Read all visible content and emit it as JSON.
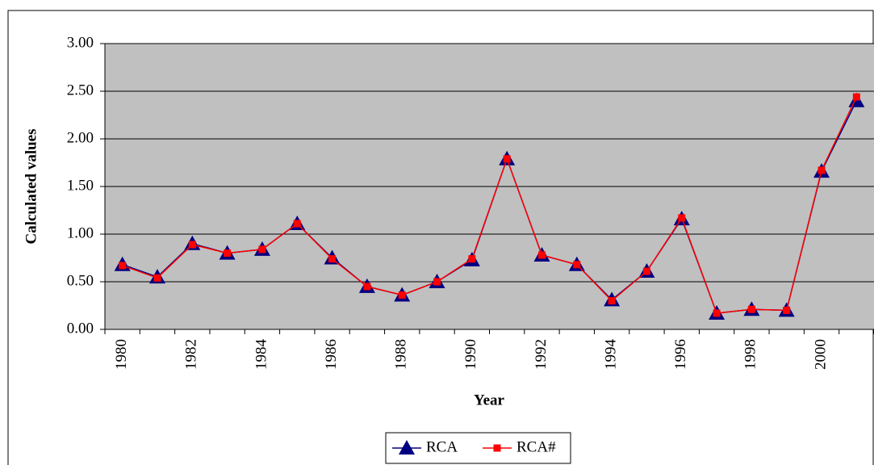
{
  "chart_data": {
    "type": "line",
    "x_label": "Year",
    "y_label": "Calculated values",
    "categories": [
      "1980",
      null,
      "1982",
      null,
      "1984",
      null,
      "1986",
      null,
      "1988",
      null,
      "1990",
      null,
      "1992",
      null,
      "1994",
      null,
      "1996",
      null,
      "1998",
      null,
      "2000",
      null
    ],
    "series": [
      {
        "name": "RCA",
        "color": "#000080",
        "marker": "triangle",
        "values": [
          0.68,
          0.55,
          0.9,
          0.8,
          0.84,
          1.11,
          0.75,
          0.45,
          0.36,
          0.5,
          0.73,
          1.79,
          0.78,
          0.68,
          0.31,
          0.61,
          1.16,
          0.17,
          0.21,
          0.2,
          1.66,
          2.4
        ]
      },
      {
        "name": "RCA#",
        "color": "#ff0000",
        "marker": "square",
        "values": [
          0.67,
          0.54,
          0.89,
          0.8,
          0.84,
          1.11,
          0.74,
          0.45,
          0.36,
          0.5,
          0.74,
          1.79,
          0.78,
          0.68,
          0.3,
          0.61,
          1.17,
          0.17,
          0.21,
          0.2,
          1.67,
          2.44
        ]
      }
    ],
    "ylim": [
      0,
      3
    ],
    "yticks": [
      {
        "value": 0,
        "label": "0.00"
      },
      {
        "value": 0.5,
        "label": "0.50"
      },
      {
        "value": 1,
        "label": "1.00"
      },
      {
        "value": 1.5,
        "label": "1.50"
      },
      {
        "value": 2,
        "label": "2.00"
      },
      {
        "value": 2.5,
        "label": "2.50"
      },
      {
        "value": 3,
        "label": "3.00"
      }
    ],
    "grid": true,
    "plot_background": "#c0c0c0",
    "legend": "bottom"
  }
}
